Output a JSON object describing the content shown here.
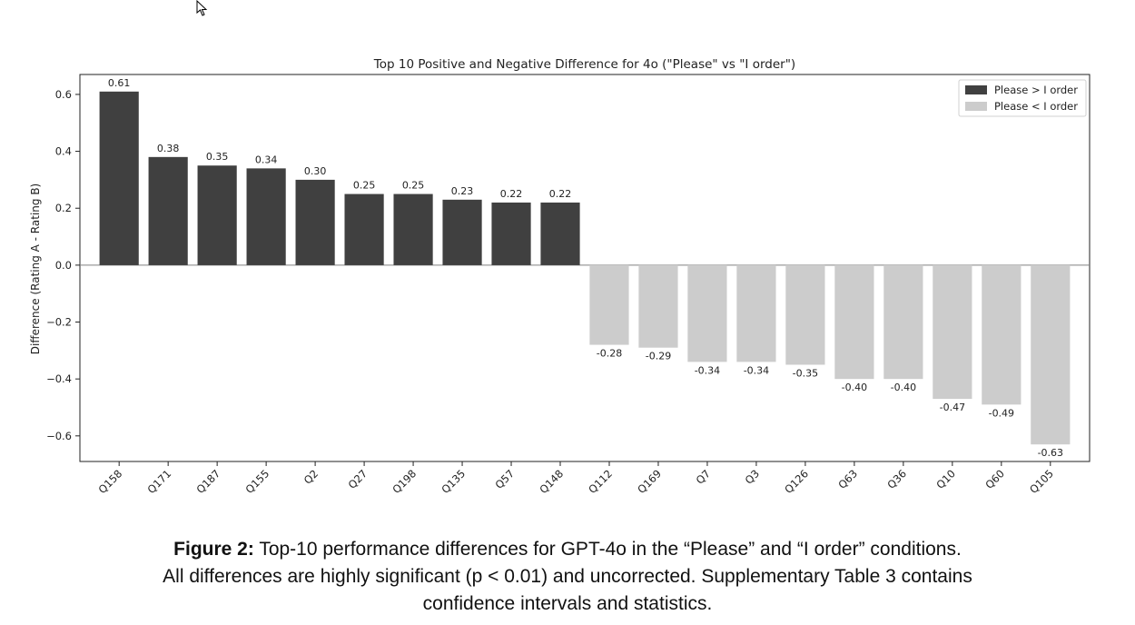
{
  "chart_data": {
    "type": "bar",
    "title": "Top 10 Positive and Negative Difference for 4o (\"Please\" vs \"I order\")",
    "xlabel": "",
    "ylabel": "Difference (Rating A - Rating B)",
    "ylim": [
      -0.69,
      0.67
    ],
    "yticks": [
      0.6,
      0.4,
      0.2,
      0.0,
      -0.2,
      -0.4,
      -0.6
    ],
    "ytick_labels": [
      "0.6",
      "0.4",
      "0.2",
      "0.0",
      "−0.2",
      "−0.4",
      "−0.6"
    ],
    "grid": false,
    "legend_position": "top-right",
    "categories": [
      "Q158",
      "Q171",
      "Q187",
      "Q155",
      "Q2",
      "Q27",
      "Q198",
      "Q135",
      "Q57",
      "Q148",
      "Q112",
      "Q169",
      "Q7",
      "Q3",
      "Q126",
      "Q63",
      "Q36",
      "Q10",
      "Q60",
      "Q105"
    ],
    "values": [
      0.61,
      0.38,
      0.35,
      0.34,
      0.3,
      0.25,
      0.25,
      0.23,
      0.22,
      0.22,
      -0.28,
      -0.29,
      -0.34,
      -0.34,
      -0.35,
      -0.4,
      -0.4,
      -0.47,
      -0.49,
      -0.63
    ],
    "value_labels": [
      "0.61",
      "0.38",
      "0.35",
      "0.34",
      "0.30",
      "0.25",
      "0.25",
      "0.23",
      "0.22",
      "0.22",
      "-0.28",
      "-0.29",
      "-0.34",
      "-0.34",
      "-0.35",
      "-0.40",
      "-0.40",
      "-0.47",
      "-0.49",
      "-0.63"
    ],
    "series": [
      {
        "name": "Please > I order",
        "color": "#404040"
      },
      {
        "name": "Please < I order",
        "color": "#cccccc"
      }
    ]
  },
  "caption": {
    "lead": "Figure 2:",
    "line1": "Top-10 performance differences for GPT-4o in the “Please” and “I order” conditions.",
    "line2": "All differences are highly significant (p < 0.01) and uncorrected. Supplementary Table 3 contains",
    "line3": "confidence intervals and statistics."
  },
  "colors": {
    "axis": "#222222",
    "zero_line": "#808080",
    "text": "#222222"
  }
}
